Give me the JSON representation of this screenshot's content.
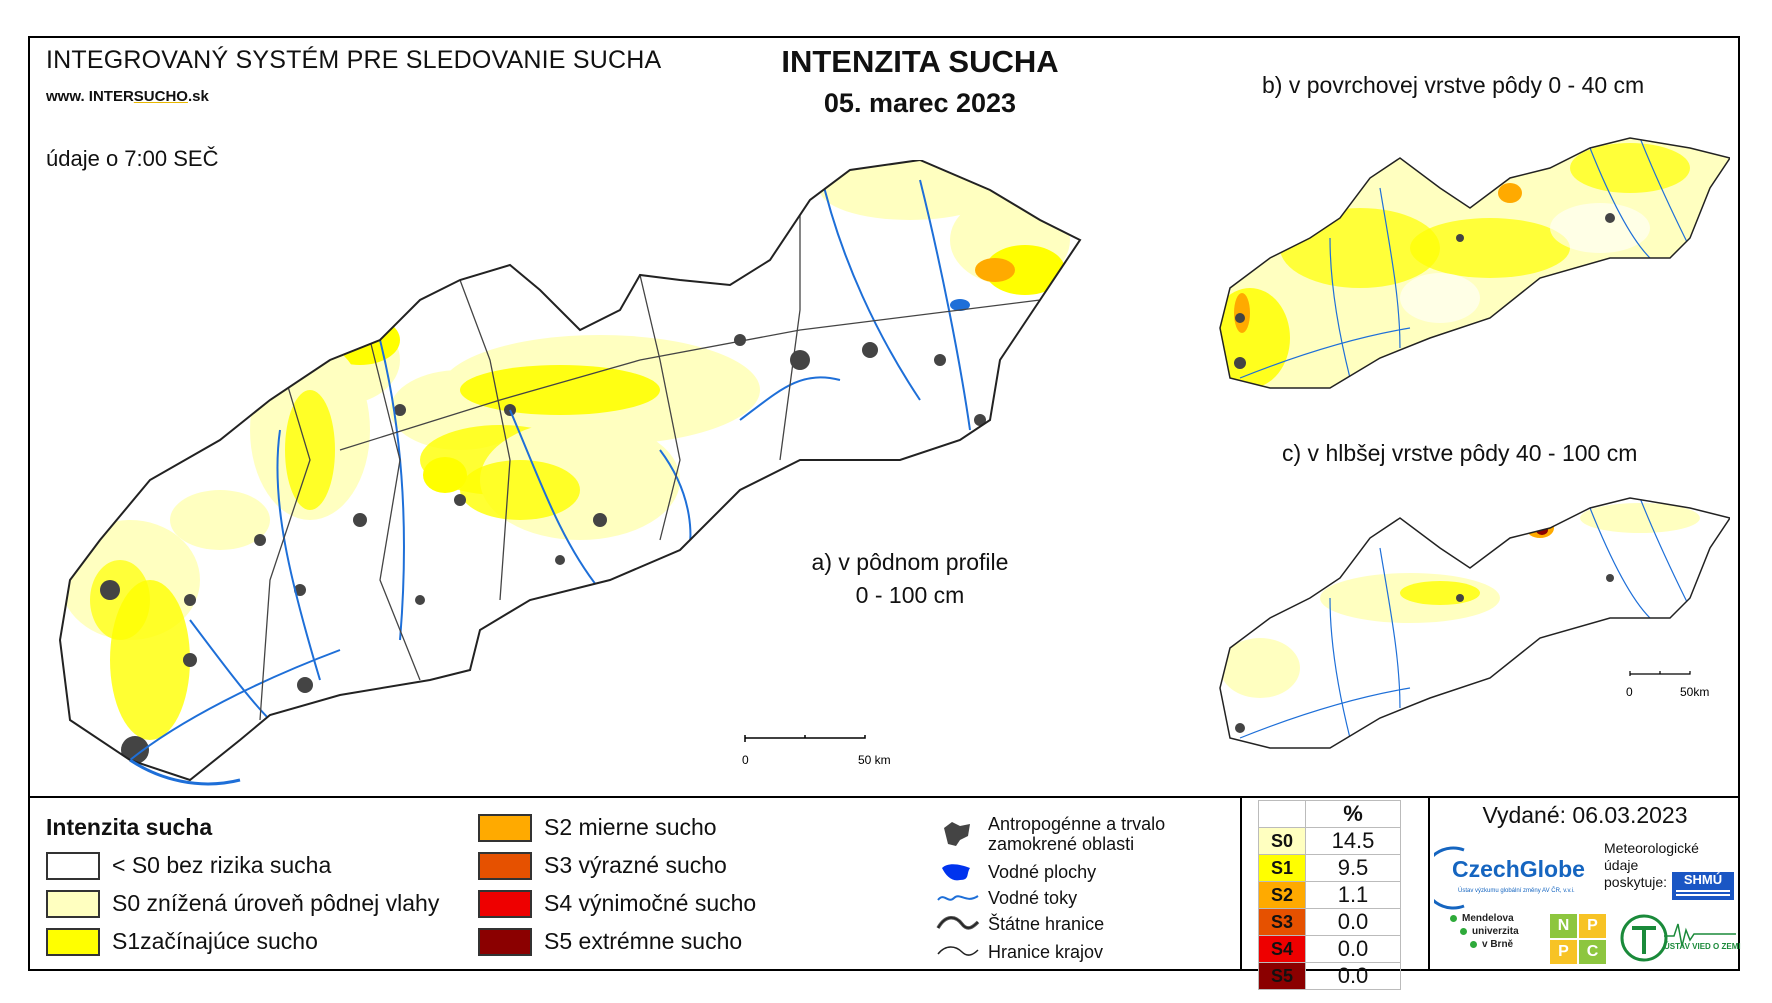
{
  "header": {
    "system_title": "INTEGROVANÝ SYSTÉM PRE SLEDOVANIE SUCHA",
    "url_prefix": "www. INTER",
    "url_brand": "SUCHO",
    "url_suffix": ".sk",
    "observation_note": "údaje o 7:00 SEČ",
    "title": "INTENZITA SUCHA",
    "date": "05. marec 2023"
  },
  "maps": {
    "main": {
      "label_line1": "a) v pôdnom profile",
      "label_line2": "0 - 100 cm",
      "scale_start": "0",
      "scale_end": "50 km"
    },
    "surface": {
      "label": "b) v povrchovej vrstve pôdy 0 - 40 cm"
    },
    "deep": {
      "label": "c) v hlbšej vrstve pôdy 40 - 100 cm",
      "scale_start": "0",
      "scale_end": "50km"
    }
  },
  "legend": {
    "title": "Intenzita sucha",
    "classes": [
      {
        "label": "< S0 bez rizika sucha",
        "color": "#ffffff"
      },
      {
        "label": "S0 znížená úroveň pôdnej vlahy",
        "color": "#ffffc0"
      },
      {
        "label": "S1začínajúce sucho",
        "color": "#ffff00"
      },
      {
        "label": "S2 mierne sucho",
        "color": "#ffaa00"
      },
      {
        "label": "S3 výrazné sucho",
        "color": "#e65100"
      },
      {
        "label": "S4 výnimočné sucho",
        "color": "#ee0000"
      },
      {
        "label": "S5 extrémne sucho",
        "color": "#8b0000"
      }
    ],
    "symbols": [
      {
        "label_line1": "Antropogénne a trvalo",
        "label_line2": "zamokrené oblasti",
        "icon": "urban-area-icon"
      },
      {
        "label_line1": "Vodné plochy",
        "label_line2": "",
        "icon": "water-body-icon"
      },
      {
        "label_line1": "Vodné toky",
        "label_line2": "",
        "icon": "river-icon"
      },
      {
        "label_line1": "Štátne hranice",
        "label_line2": "",
        "icon": "state-border-icon"
      },
      {
        "label_line1": "Hranice krajov",
        "label_line2": "",
        "icon": "region-border-icon"
      }
    ]
  },
  "percent_table": {
    "header": "%",
    "rows": [
      {
        "class": "S0",
        "value": "14.5",
        "color": "#ffffc0"
      },
      {
        "class": "S1",
        "value": "9.5",
        "color": "#ffff00"
      },
      {
        "class": "S2",
        "value": "1.1",
        "color": "#ffaa00"
      },
      {
        "class": "S3",
        "value": "0.0",
        "color": "#e65100"
      },
      {
        "class": "S4",
        "value": "0.0",
        "color": "#ee0000"
      },
      {
        "class": "S5",
        "value": "0.0",
        "color": "#8b0000"
      }
    ]
  },
  "footer": {
    "issued": "Vydané: 06.03.2023",
    "czechglobe": "CzechGlobe",
    "czechglobe_sub": "Ústav výzkumu globální změny AV ČR, v.v.i.",
    "meteo_line1": "Meteorologické",
    "meteo_line2": "údaje",
    "meteo_line3": "poskytuje:",
    "shmu": "SHMÚ",
    "mendel_line1": "Mendelova",
    "mendel_line2": "univerzita",
    "mendel_line3": "v Brně",
    "npc": [
      "N",
      "P",
      "P",
      "C"
    ],
    "uvz": "ÚSTAV VIED O ZEMI"
  }
}
